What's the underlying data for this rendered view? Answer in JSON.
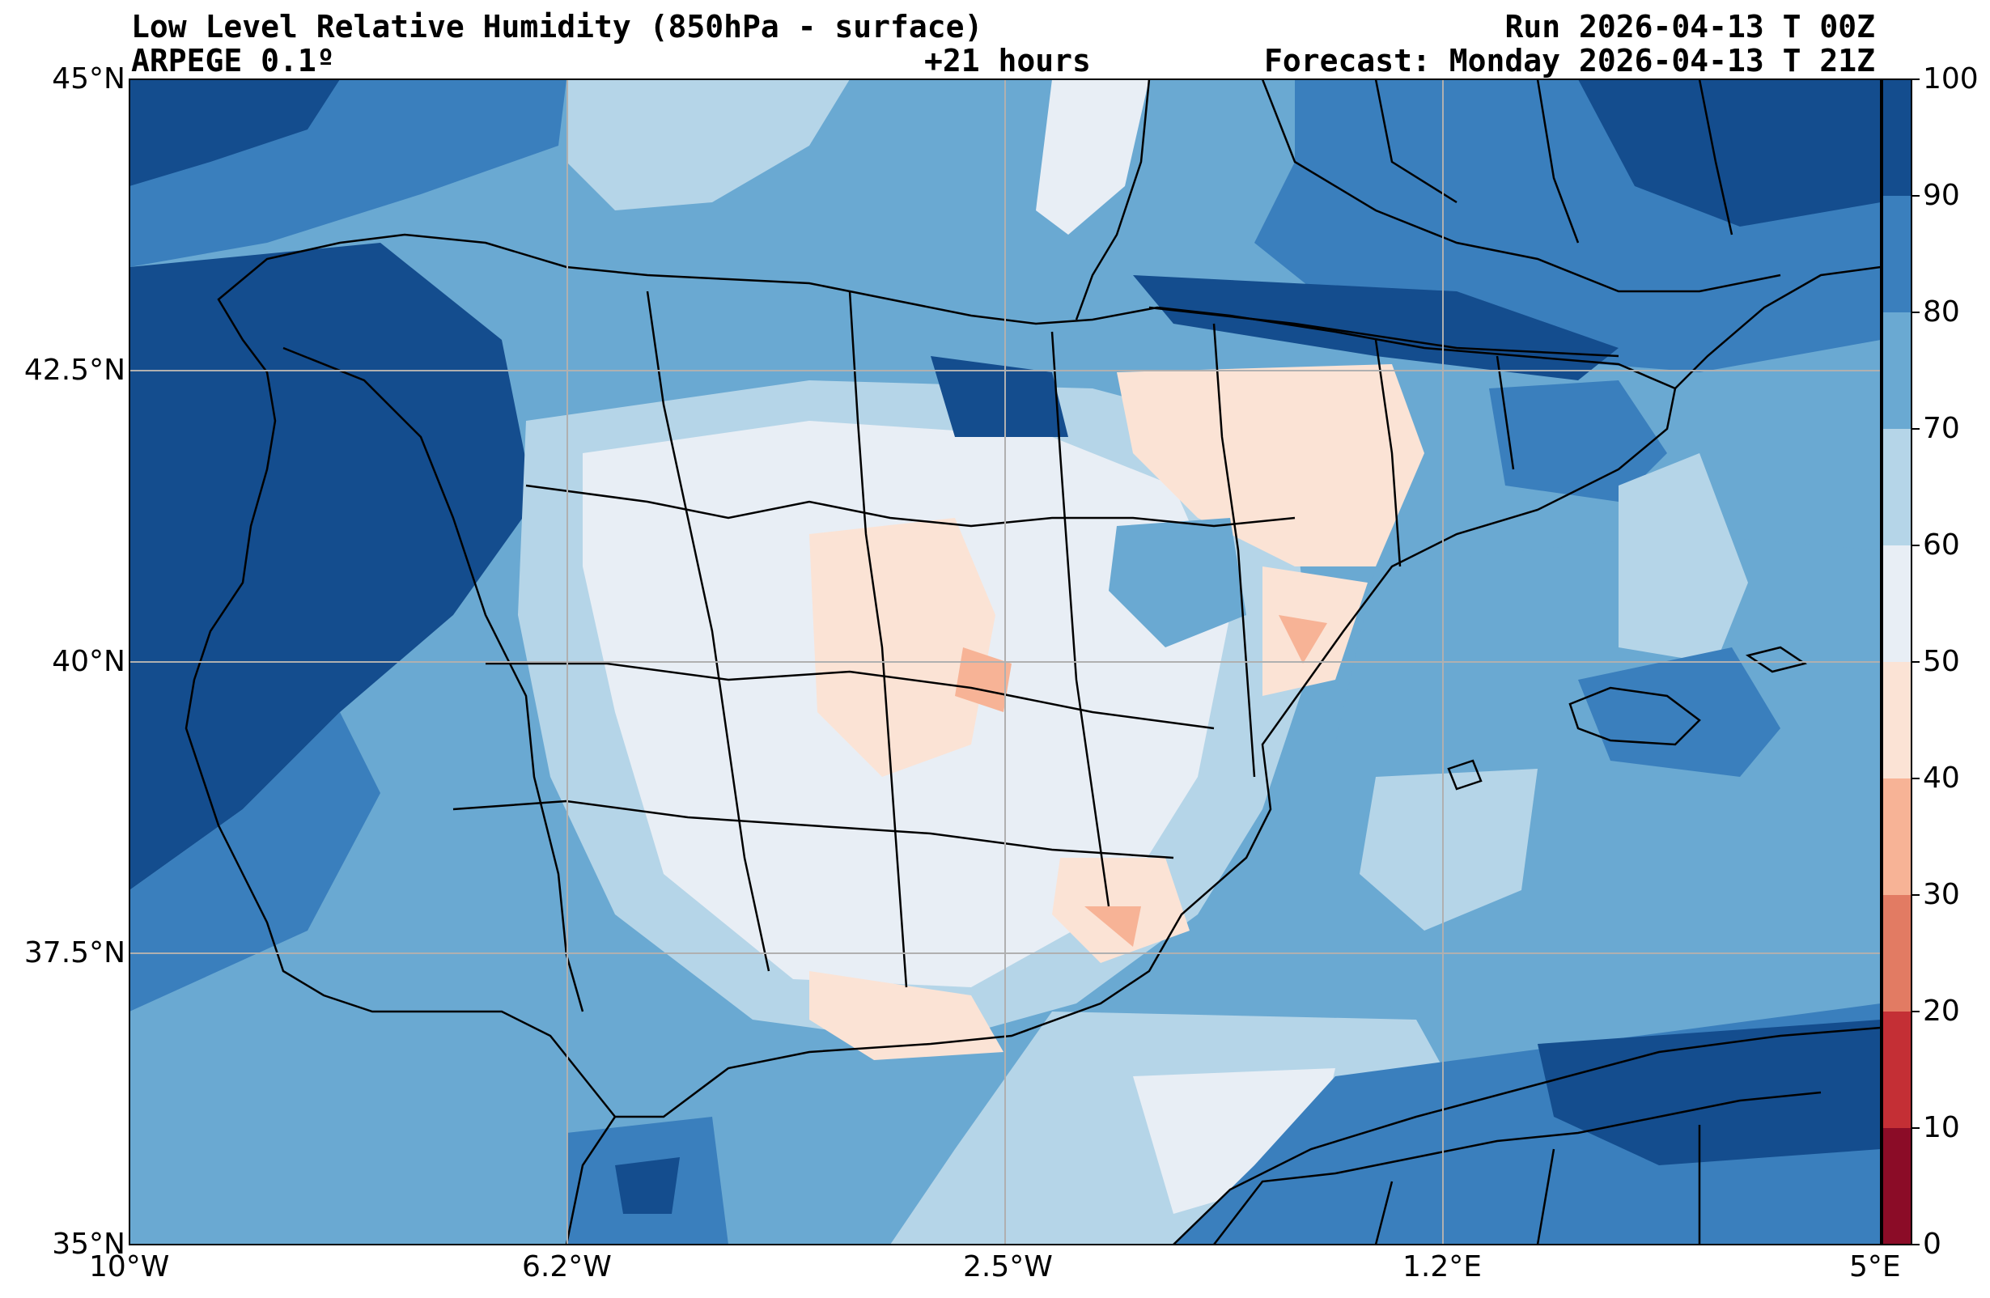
{
  "header": {
    "title": "Low Level Relative Humidity (850hPa - surface)",
    "model": "ARPEGE 0.1º",
    "lead_time": "+21 hours",
    "run": "Run 2026-04-13 T 00Z",
    "forecast": "Forecast: Monday 2026-04-13 T 21Z"
  },
  "map": {
    "extent": {
      "lon": [
        -10,
        5
      ],
      "lat": [
        35,
        45
      ]
    },
    "lat_ticks": [
      "45°N",
      "42.5°N",
      "40°N",
      "37.5°N",
      "35°N"
    ],
    "lon_ticks": [
      "10°W",
      "6.2°W",
      "2.5°W",
      "1.2°E",
      "5°E"
    ],
    "grid": true
  },
  "colorbar": {
    "levels": [
      0,
      10,
      20,
      30,
      40,
      50,
      60,
      70,
      80,
      90,
      100
    ],
    "labels": [
      "100",
      "90",
      "80",
      "70",
      "60",
      "50",
      "40",
      "30",
      "20",
      "10",
      "0"
    ],
    "colors": [
      "#8b0c27",
      "#c42f35",
      "#e27b63",
      "#f7b396",
      "#fbe3d5",
      "#e8eef5",
      "#b5d5e8",
      "#6aa9d2",
      "#3a7fbd",
      "#144d8e"
    ]
  }
}
